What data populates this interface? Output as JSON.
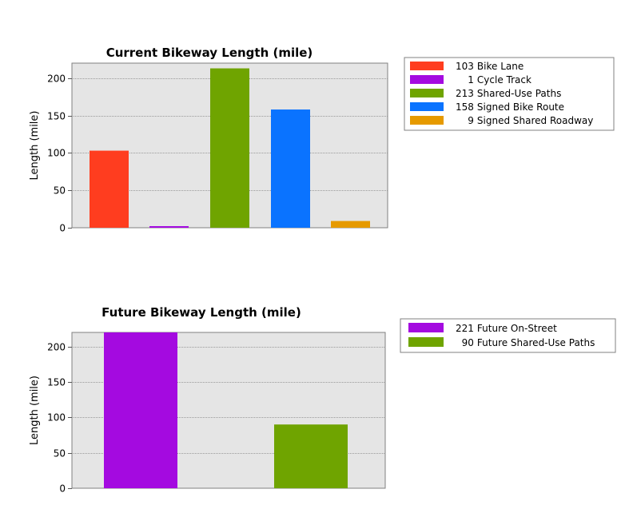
{
  "chart_data": [
    {
      "type": "bar",
      "title": "Current Bikeway Length (mile)",
      "ylabel": "Length (mile)",
      "xlabel": "",
      "ylim": [
        0,
        220
      ],
      "yticks": [
        0,
        50,
        100,
        150,
        200
      ],
      "grid": true,
      "legend_position": "right",
      "categories": [
        "Bike Lane",
        "Cycle Track",
        "Shared-Use Paths",
        "Signed Bike Route",
        "Signed Shared Roadway"
      ],
      "values": [
        103,
        1,
        213,
        158,
        9
      ],
      "colors": [
        "#ff3d1f",
        "#a40ae0",
        "#6fa400",
        "#0a73ff",
        "#e69a00"
      ],
      "legend": [
        "103 Bike Lane",
        "1 Cycle Track",
        "213 Shared-Use Paths",
        "158 Signed Bike Route",
        "9 Signed Shared Roadway"
      ]
    },
    {
      "type": "bar",
      "title": "Future Bikeway Length (mile)",
      "ylabel": "Length (mile)",
      "xlabel": "",
      "ylim": [
        0,
        220
      ],
      "yticks": [
        0,
        50,
        100,
        150,
        200
      ],
      "grid": true,
      "legend_position": "right",
      "categories": [
        "Future On-Street",
        "Future Shared-Use Paths"
      ],
      "values": [
        221,
        90
      ],
      "colors": [
        "#a40ae0",
        "#6fa400"
      ],
      "legend": [
        "221 Future On-Street",
        "90 Future Shared-Use Paths"
      ]
    }
  ]
}
